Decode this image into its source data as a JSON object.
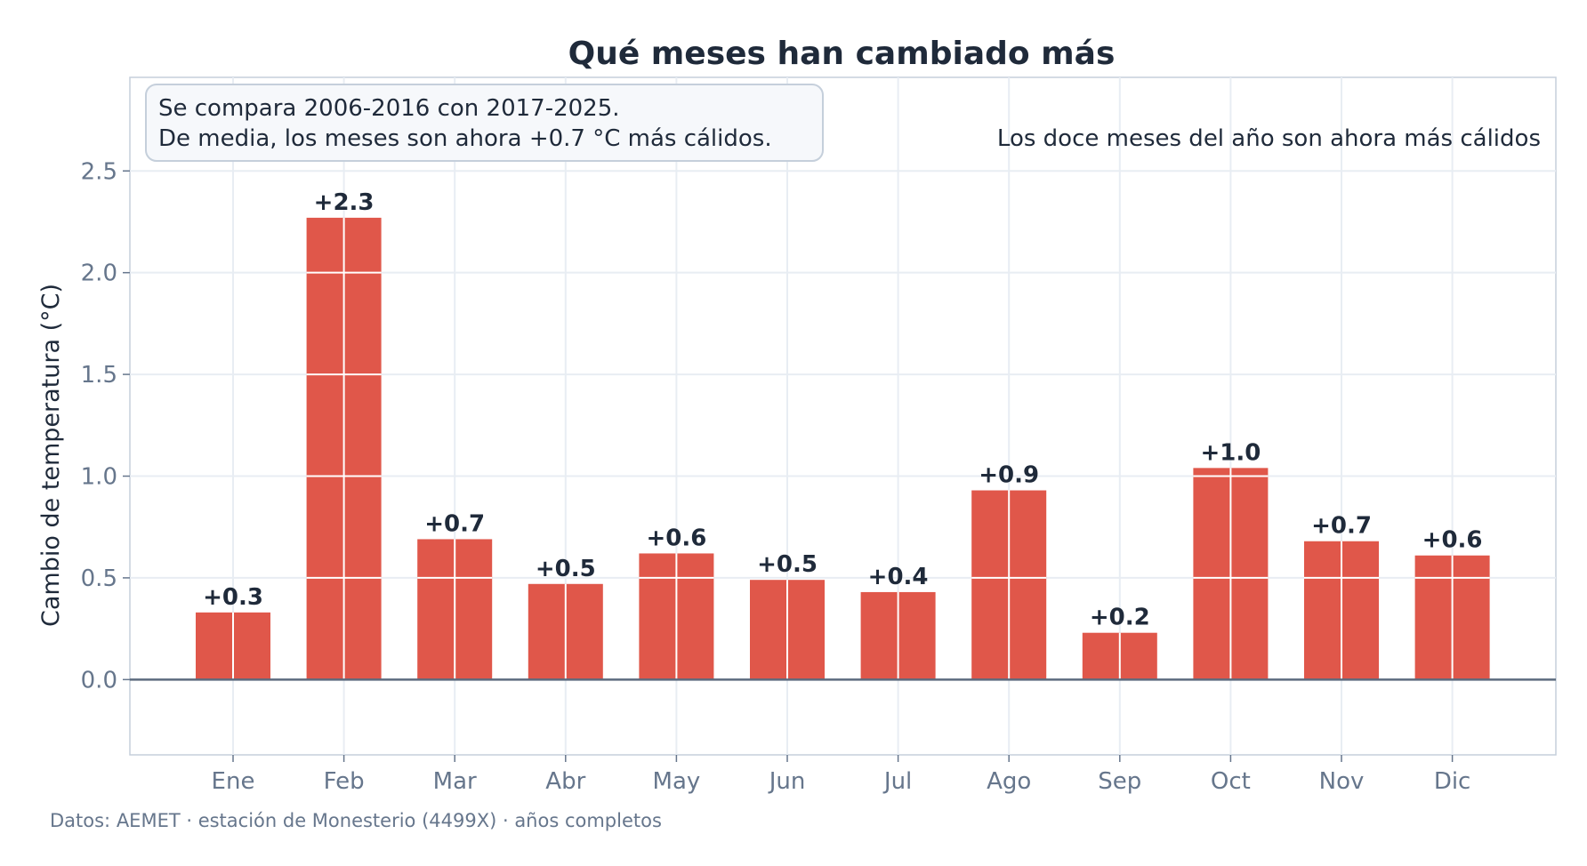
{
  "chart_data": {
    "type": "bar",
    "title": "Qué meses han cambiado más",
    "ylabel": "Cambio de temperatura (°C)",
    "xlabel": "",
    "categories": [
      "Ene",
      "Feb",
      "Mar",
      "Abr",
      "May",
      "Jun",
      "Jul",
      "Ago",
      "Sep",
      "Oct",
      "Nov",
      "Dic"
    ],
    "values": [
      0.33,
      2.27,
      0.69,
      0.47,
      0.62,
      0.49,
      0.43,
      0.93,
      0.23,
      1.04,
      0.68,
      0.61
    ],
    "data_labels": [
      "+0.3",
      "+2.3",
      "+0.7",
      "+0.5",
      "+0.6",
      "+0.5",
      "+0.4",
      "+0.9",
      "+0.2",
      "+1.0",
      "+0.7",
      "+0.6"
    ],
    "ylim": [
      -0.37,
      2.96
    ],
    "yticks": [
      0.0,
      0.5,
      1.0,
      1.5,
      2.0,
      2.5
    ],
    "ytick_labels": [
      "0.0",
      "0.5",
      "1.0",
      "1.5",
      "2.0",
      "2.5"
    ],
    "grid": true,
    "annotation_box": {
      "line1": "Se compara 2006-2016 con 2017-2025.",
      "line2": "De media, los meses son ahora +0.7 °C más cálidos."
    },
    "annotation_right": "Los doce meses del año son ahora más cálidos",
    "source": "Datos: AEMET · estación de Monesterio (4499X) · años completos",
    "colors": {
      "bar": "#e0574a",
      "text": "#1f2a3a",
      "tick": "#66768c",
      "grid": "#e8edf3",
      "axis_frame": "#c5cfdb",
      "zero_line": "#5d6b7e",
      "box_fill": "#f6f8fb",
      "box_stroke": "#c5cfdb"
    }
  }
}
